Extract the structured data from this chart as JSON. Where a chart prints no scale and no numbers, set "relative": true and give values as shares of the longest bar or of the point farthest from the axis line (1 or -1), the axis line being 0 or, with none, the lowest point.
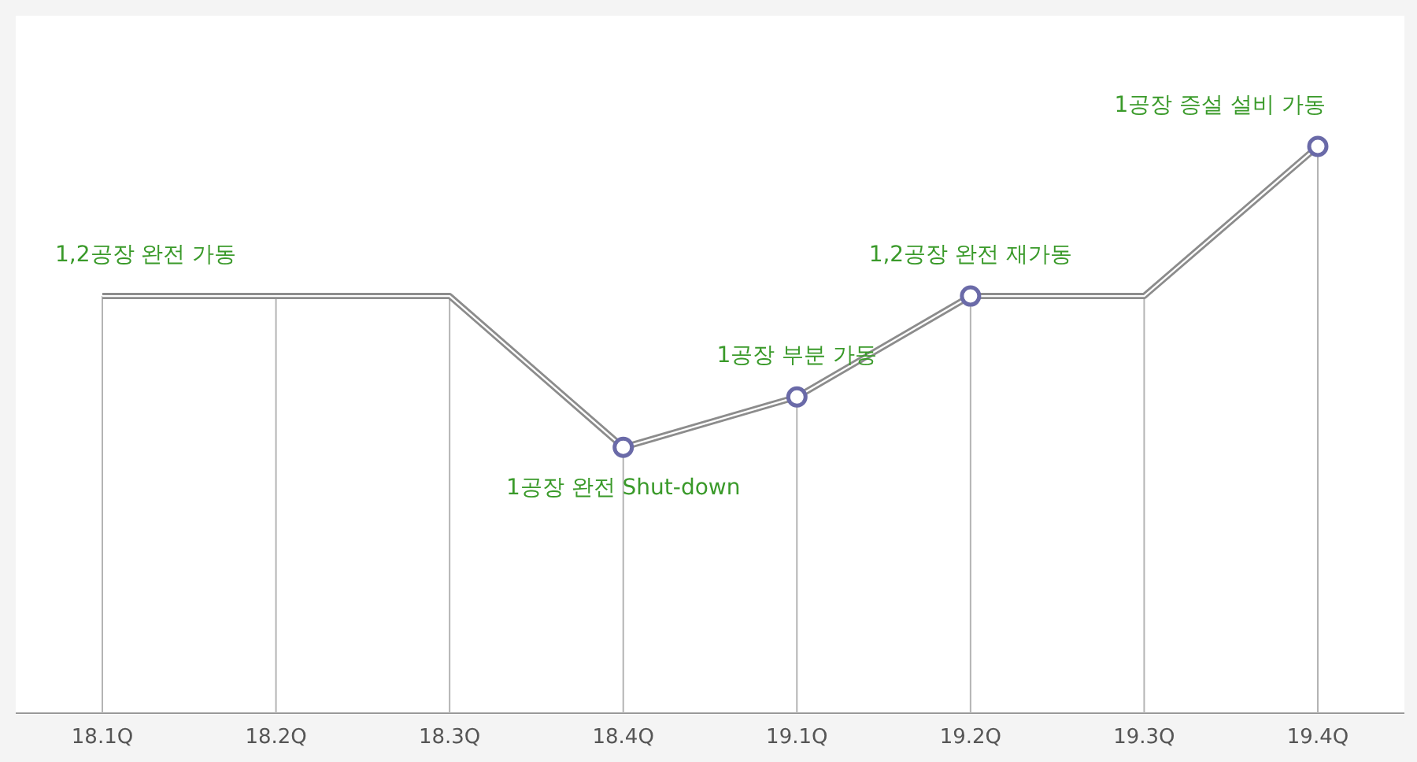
{
  "chart_data": {
    "type": "line",
    "relative": true,
    "categories": [
      "18.1Q",
      "18.2Q",
      "18.3Q",
      "18.4Q",
      "19.1Q",
      "19.2Q",
      "19.3Q",
      "19.4Q"
    ],
    "series": [
      {
        "color": "#8c8c8c",
        "marker": "none",
        "values": [
          0.736,
          0.736,
          0.736,
          0.469,
          0.558,
          0.736,
          0.736,
          1
        ]
      },
      {
        "type": "scatter",
        "color": "#6a6aa8",
        "marker": "circle",
        "x": [
          "18.4Q",
          "19.1Q",
          "19.2Q",
          "19.4Q"
        ],
        "values": [
          0.469,
          0.558,
          0.736,
          1
        ]
      }
    ],
    "annotations": [
      {
        "text": "1,2공장 완전 가동",
        "x": "18.1Q",
        "y": 0.736
      },
      {
        "text": "1공장 완전 Shut-down",
        "x": "18.4Q",
        "y": 0.469
      },
      {
        "text": "1공장 부분 가동",
        "x": "19.1Q",
        "y": 0.558
      },
      {
        "text": "1,2공장 완전 재가동",
        "x": "19.2Q",
        "y": 0.736
      },
      {
        "text": "1공장 증설 설비 가동",
        "x": "19.4Q",
        "y": 1
      }
    ],
    "grid": "x"
  }
}
